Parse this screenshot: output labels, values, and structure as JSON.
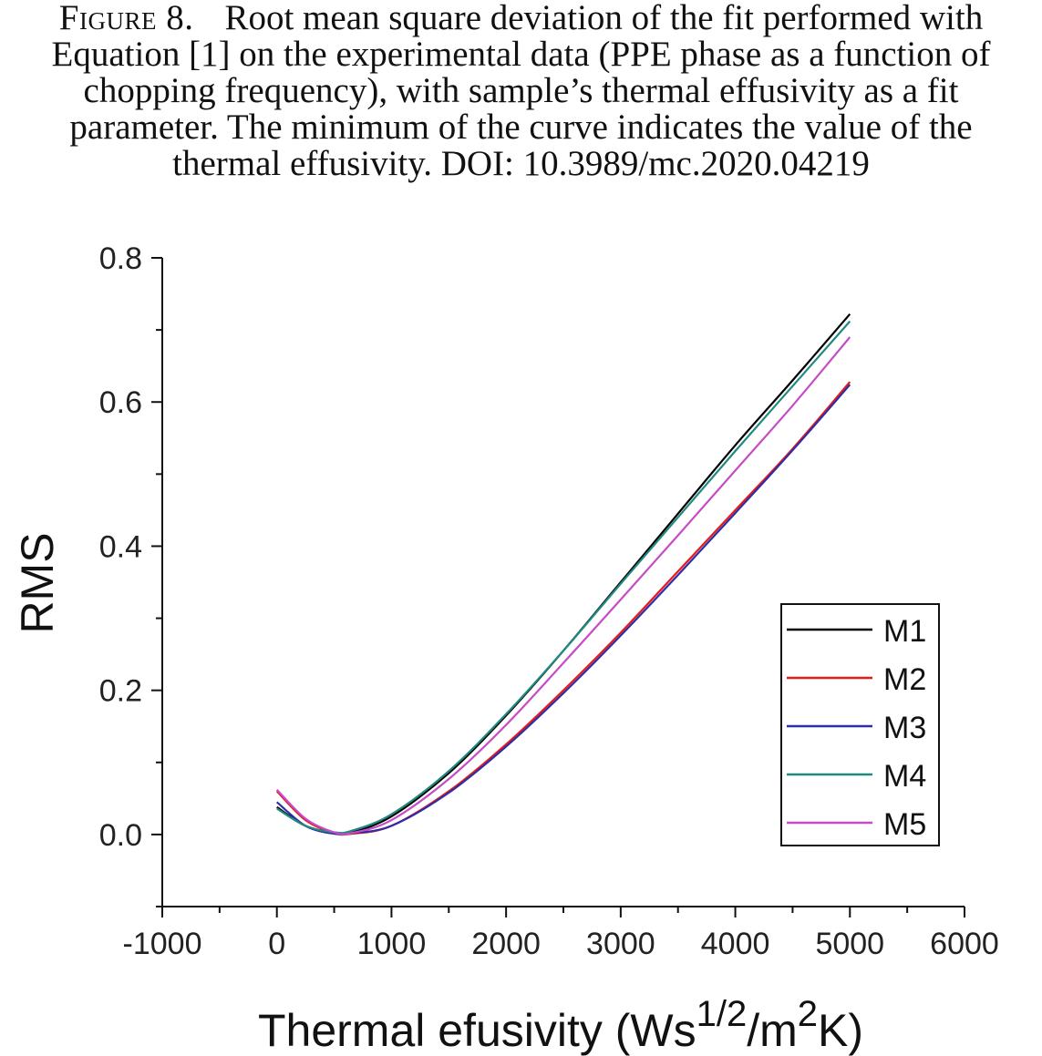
{
  "caption": {
    "label": "Figure 8.",
    "text": "Root mean square deviation of the fit performed with Equation [1] on the experimental data (PPE phase as a function of chopping frequency), with sample’s thermal effusivity as a fit parameter. The minimum of the curve indicates the value of the thermal effusivity. DOI: 10.3989/mc.2020.04219"
  },
  "chart_data": {
    "type": "line",
    "xlabel_main": "Thermal efusivity (Ws",
    "xlabel_sup1": "1/2",
    "xlabel_mid": "/m",
    "xlabel_sup2": "2",
    "xlabel_end": "K)",
    "ylabel": "RMS",
    "xlim": [
      -1000,
      6000
    ],
    "ylim": [
      -0.1,
      0.8
    ],
    "xticks": [
      "-1000",
      "0",
      "1000",
      "2000",
      "3000",
      "4000",
      "5000",
      "6000"
    ],
    "yticks": [
      "0.0",
      "0.2",
      "0.4",
      "0.6",
      "0.8"
    ],
    "grid": false,
    "legend_position": "lower-right",
    "series": [
      {
        "name": "M1",
        "color": "#000000",
        "x": [
          0,
          250,
          500,
          650,
          1000,
          1500,
          2000,
          2500,
          3000,
          3500,
          4000,
          4500,
          5000
        ],
        "y": [
          0.038,
          0.012,
          0.002,
          0.003,
          0.025,
          0.085,
          0.165,
          0.255,
          0.35,
          0.445,
          0.54,
          0.63,
          0.722
        ]
      },
      {
        "name": "M2",
        "color": "#e8191b",
        "x": [
          0,
          250,
          500,
          650,
          1000,
          1500,
          2000,
          2500,
          3000,
          3500,
          4000,
          4500,
          5000
        ],
        "y": [
          0.06,
          0.02,
          0.002,
          0.001,
          0.012,
          0.06,
          0.125,
          0.2,
          0.28,
          0.365,
          0.45,
          0.535,
          0.628
        ]
      },
      {
        "name": "M3",
        "color": "#2c2ea8",
        "x": [
          0,
          250,
          500,
          650,
          1000,
          1500,
          2000,
          2500,
          3000,
          3500,
          4000,
          4500,
          5000
        ],
        "y": [
          0.045,
          0.012,
          0.001,
          0.002,
          0.012,
          0.058,
          0.122,
          0.196,
          0.276,
          0.36,
          0.446,
          0.533,
          0.624
        ]
      },
      {
        "name": "M4",
        "color": "#1f8b80",
        "x": [
          0,
          250,
          500,
          650,
          1000,
          1500,
          2000,
          2500,
          3000,
          3500,
          4000,
          4500,
          5000
        ],
        "y": [
          0.036,
          0.012,
          0.003,
          0.005,
          0.028,
          0.088,
          0.167,
          0.255,
          0.348,
          0.44,
          0.532,
          0.622,
          0.712
        ]
      },
      {
        "name": "M5",
        "color": "#c64bc6",
        "x": [
          0,
          250,
          500,
          650,
          1000,
          1500,
          2000,
          2500,
          3000,
          3500,
          4000,
          4500,
          5000
        ],
        "y": [
          0.062,
          0.022,
          0.003,
          0.002,
          0.02,
          0.077,
          0.152,
          0.238,
          0.326,
          0.415,
          0.505,
          0.595,
          0.69
        ]
      }
    ]
  }
}
